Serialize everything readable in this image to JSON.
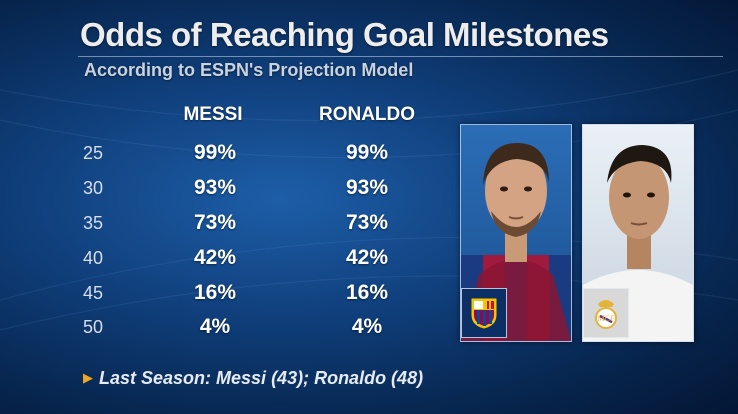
{
  "header": {
    "title": "Odds of Reaching Goal Milestones",
    "subtitle": "According to ESPN's Projection Model"
  },
  "table": {
    "columns": [
      "MESSI",
      "RONALDO"
    ],
    "rows": [
      {
        "goals": "25",
        "messi": "99%",
        "ronaldo": "99%"
      },
      {
        "goals": "30",
        "messi": "93%",
        "ronaldo": "93%"
      },
      {
        "goals": "35",
        "messi": "73%",
        "ronaldo": "73%"
      },
      {
        "goals": "40",
        "messi": "42%",
        "ronaldo": "42%"
      },
      {
        "goals": "45",
        "messi": "16%",
        "ronaldo": "16%"
      },
      {
        "goals": "50",
        "messi": "4%",
        "ronaldo": "4%"
      }
    ]
  },
  "footnote": {
    "text": "Last Season: Messi (43); Ronaldo (48)"
  },
  "icons": {
    "messi_badge": "fc-barcelona-crest-icon",
    "ronaldo_badge": "real-madrid-crest-icon",
    "bullet": "orange-triangle-icon"
  },
  "colors": {
    "background": "#0f3d78",
    "accent": "#f0a523"
  }
}
